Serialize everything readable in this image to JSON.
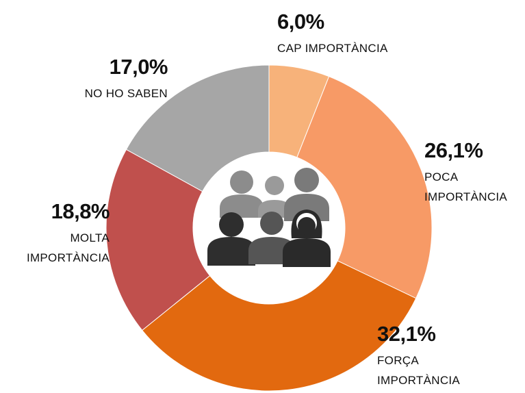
{
  "chart_data": {
    "type": "donut",
    "categories": [
      "CAP IMPORTÀNCIA",
      "POCA IMPORTÀNCIA",
      "FORÇA IMPORTÀNCIA",
      "MOLTA IMPORTÀNCIA",
      "NO HO SABEN"
    ],
    "values": [
      6.0,
      26.1,
      32.1,
      18.8,
      17.0
    ],
    "value_labels": [
      "6,0%",
      "26,1%",
      "32,1%",
      "18,8%",
      "17,0%"
    ],
    "colors": [
      "#f7b27a",
      "#f79a66",
      "#e2690f",
      "#c0504d",
      "#a6a6a6"
    ]
  }
}
